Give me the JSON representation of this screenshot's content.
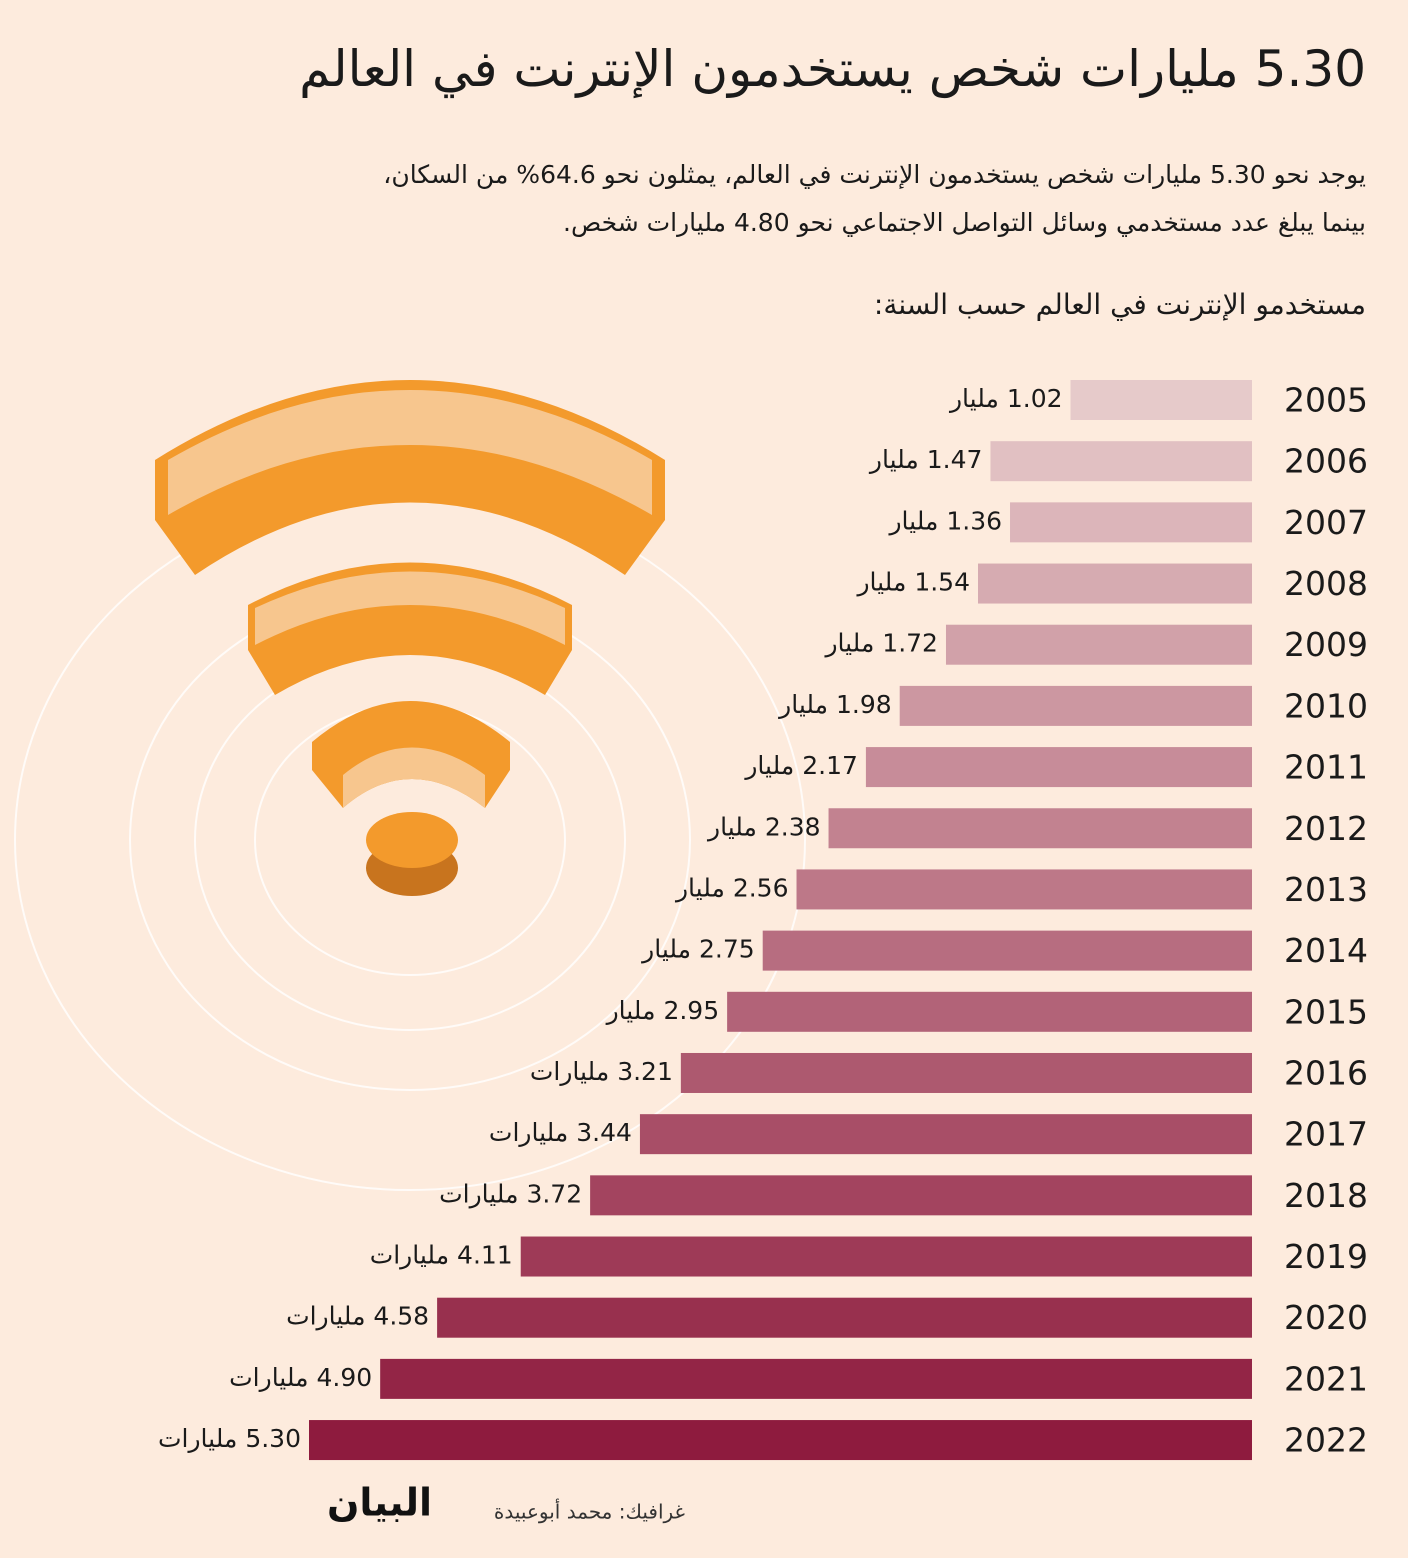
{
  "chart_data": {
    "type": "bar",
    "orientation": "horizontal",
    "title": "5.30 مليارات شخص يستخدمون الإنترنت في العالم",
    "subtitle": [
      "يوجد نحو 5.30 مليارات شخص يستخدمون الإنترنت في العالم، يمثلون نحو 64.6% من السكان،",
      "بينما يبلغ عدد مستخدمي وسائل التواصل الاجتماعي نحو 4.80 مليارات شخص."
    ],
    "heading": "مستخدمو الإنترنت في العالم حسب السنة:",
    "categories": [
      "2005",
      "2006",
      "2007",
      "2008",
      "2009",
      "2010",
      "2011",
      "2012",
      "2013",
      "2014",
      "2015",
      "2016",
      "2017",
      "2018",
      "2019",
      "2020",
      "2021",
      "2022"
    ],
    "values": [
      1.02,
      1.47,
      1.36,
      1.54,
      1.72,
      1.98,
      2.17,
      2.38,
      2.56,
      2.75,
      2.95,
      3.21,
      3.44,
      3.72,
      4.11,
      4.58,
      4.9,
      5.3
    ],
    "value_labels": [
      "1.02 مليار",
      "1.47 مليار",
      "1.36 مليار",
      "1.54 مليار",
      "1.72 مليار",
      "1.98 مليار",
      "2.17 مليار",
      "2.38 مليار",
      "2.56 مليار",
      "2.75 مليار",
      "2.95 مليار",
      "3.21 مليارات",
      "3.44 مليارات",
      "3.72 مليارات",
      "4.11 مليارات",
      "4.58 مليارات",
      "4.90 مليارات",
      "5.30 مليارات"
    ],
    "color_range": [
      "#e6caca",
      "#8e1b3e"
    ]
  },
  "footer": {
    "credit": "غرافيك: محمد أبوعبيدة",
    "logo": "البيان"
  }
}
